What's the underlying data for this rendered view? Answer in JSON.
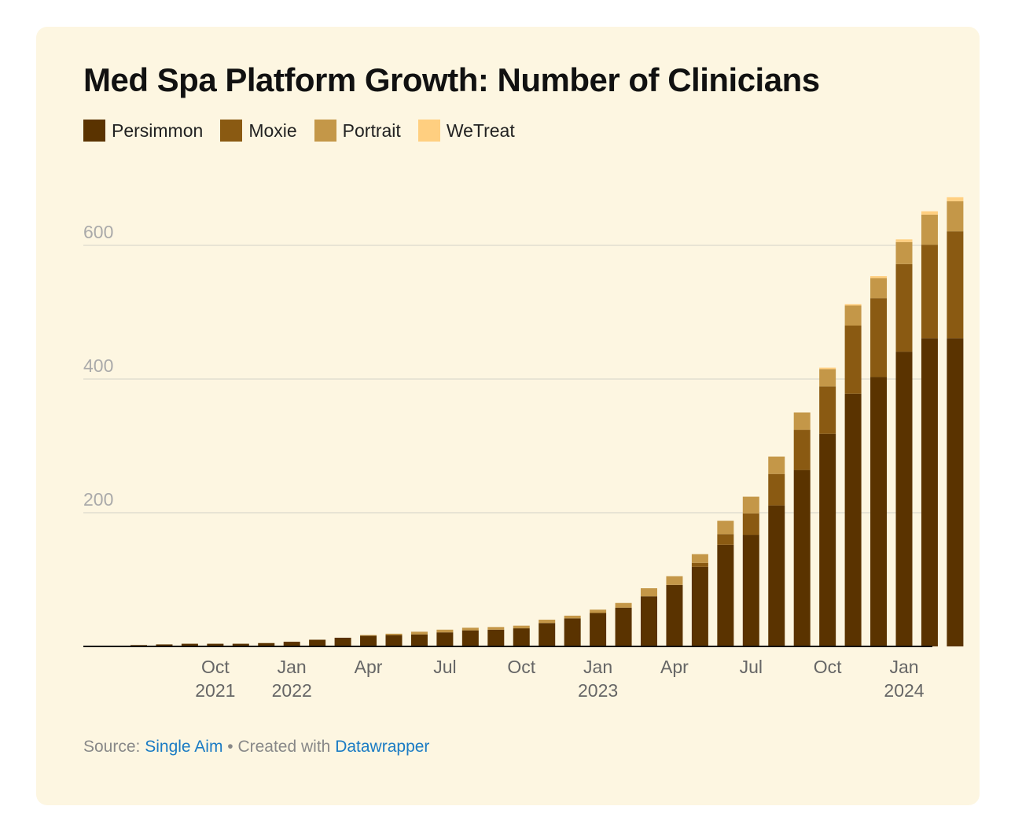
{
  "colors": {
    "background": "#fdf6e1",
    "grid": "#e2ddd0",
    "axis": "#111111",
    "link": "#1a7bc4"
  },
  "chart_data": {
    "type": "bar",
    "stacked": true,
    "title": "Med Spa Platform Growth: Number of Clinicians",
    "legend_position": "top-left",
    "grid": true,
    "ylim": [
      0,
      680
    ],
    "yticks": [
      200,
      400,
      600
    ],
    "categories": [
      "Jul 2021",
      "Aug 2021",
      "Sep 2021",
      "Oct 2021",
      "Nov 2021",
      "Dec 2021",
      "Jan 2022",
      "Feb 2022",
      "Mar 2022",
      "Apr 2022",
      "May 2022",
      "Jun 2022",
      "Jul 2022",
      "Aug 2022",
      "Sep 2022",
      "Oct 2022",
      "Nov 2022",
      "Dec 2022",
      "Jan 2023",
      "Feb 2023",
      "Mar 2023",
      "Apr 2023",
      "May 2023",
      "Jun 2023",
      "Jul 2023",
      "Aug 2023",
      "Sep 2023",
      "Oct 2023",
      "Nov 2023",
      "Dec 2023",
      "Jan 2024",
      "Feb 2024",
      "Mar 2024"
    ],
    "x_tick_labels": [
      {
        "index": 3,
        "line1": "Oct",
        "line2": "2021"
      },
      {
        "index": 6,
        "line1": "Jan",
        "line2": "2022"
      },
      {
        "index": 9,
        "line1": "Apr",
        "line2": ""
      },
      {
        "index": 12,
        "line1": "Jul",
        "line2": ""
      },
      {
        "index": 15,
        "line1": "Oct",
        "line2": ""
      },
      {
        "index": 18,
        "line1": "Jan",
        "line2": "2023"
      },
      {
        "index": 21,
        "line1": "Apr",
        "line2": ""
      },
      {
        "index": 24,
        "line1": "Jul",
        "line2": ""
      },
      {
        "index": 27,
        "line1": "Oct",
        "line2": ""
      },
      {
        "index": 30,
        "line1": "Jan",
        "line2": "2024"
      }
    ],
    "series": [
      {
        "name": "Persimmon",
        "color": "#5a3300",
        "values": [
          2,
          3,
          4,
          4,
          4,
          5,
          7,
          10,
          13,
          16,
          17,
          18,
          21,
          24,
          25,
          27,
          35,
          42,
          50,
          58,
          75,
          92,
          119,
          152,
          167,
          211,
          264,
          318,
          378,
          403,
          441,
          461,
          461
        ]
      },
      {
        "name": "Moxie",
        "color": "#8a5a12",
        "values": [
          0,
          0,
          0,
          0,
          0,
          0,
          0,
          0,
          0,
          0,
          0,
          0,
          0,
          0,
          0,
          0,
          0,
          0,
          0,
          0,
          0,
          0,
          6,
          16,
          32,
          47,
          60,
          71,
          102,
          118,
          131,
          140,
          160
        ]
      },
      {
        "name": "Portrait",
        "color": "#c49748",
        "values": [
          0,
          0,
          0,
          0,
          0,
          0,
          0,
          0,
          0,
          1,
          2,
          4,
          4,
          4,
          4,
          4,
          5,
          4,
          5,
          7,
          12,
          13,
          13,
          20,
          25,
          26,
          26,
          26,
          30,
          30,
          33,
          45,
          45
        ]
      },
      {
        "name": "WeTreat",
        "color": "#ffcf80",
        "values": [
          0,
          0,
          0,
          0,
          0,
          0,
          0,
          0,
          0,
          0,
          0,
          0,
          0,
          0,
          0,
          0,
          0,
          0,
          0,
          0,
          0,
          0,
          0,
          0,
          0,
          0,
          0,
          2,
          2,
          3,
          4,
          5,
          6
        ]
      }
    ]
  },
  "footer": {
    "source_prefix": "Source: ",
    "source_link": "Single Aim",
    "separator": " • Created with ",
    "tool_link": "Datawrapper"
  }
}
